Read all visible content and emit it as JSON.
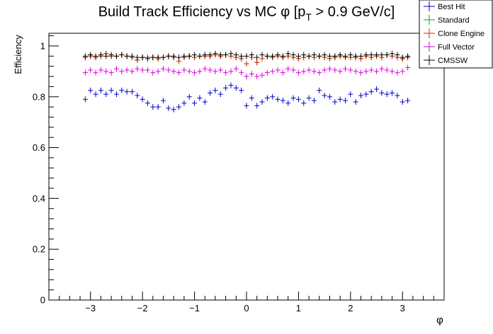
{
  "chart_data": {
    "type": "scatter",
    "title": "Build Track Efficiency vs MC φ [p",
    "title_sub": "T",
    "title_tail": " > 0.9 GeV/c]",
    "xlabel": "φ",
    "ylabel": "Efficiency",
    "xlim": [
      -3.8,
      3.8
    ],
    "ylim": [
      0,
      1.05
    ],
    "legend_position": "top-right",
    "grid": false,
    "x_ticks": [
      -3,
      -2,
      -1,
      0,
      1,
      2,
      3
    ],
    "x_tick_labels": [
      "−3",
      "−2",
      "−1",
      "0",
      "1",
      "2",
      "3"
    ],
    "y_ticks": [
      0,
      0.2,
      0.4,
      0.6,
      0.8,
      1
    ],
    "y_tick_labels": [
      "0",
      "0.2",
      "0.4",
      "0.6",
      "0.8",
      "1"
    ],
    "x": [
      -3.1,
      -3.0,
      -2.9,
      -2.8,
      -2.7,
      -2.6,
      -2.5,
      -2.4,
      -2.3,
      -2.2,
      -2.1,
      -2.0,
      -1.9,
      -1.8,
      -1.7,
      -1.6,
      -1.5,
      -1.4,
      -1.3,
      -1.2,
      -1.1,
      -1.0,
      -0.9,
      -0.8,
      -0.7,
      -0.6,
      -0.5,
      -0.4,
      -0.3,
      -0.2,
      -0.1,
      0.0,
      0.1,
      0.2,
      0.3,
      0.4,
      0.5,
      0.6,
      0.7,
      0.8,
      0.9,
      1.0,
      1.1,
      1.2,
      1.3,
      1.4,
      1.5,
      1.6,
      1.7,
      1.8,
      1.9,
      2.0,
      2.1,
      2.2,
      2.3,
      2.4,
      2.5,
      2.6,
      2.7,
      2.8,
      2.9,
      3.0,
      3.1
    ],
    "series": [
      {
        "name": "Best Hit",
        "color": "#0000cc",
        "values": [
          0.79,
          0.825,
          0.81,
          0.825,
          0.81,
          0.825,
          0.81,
          0.825,
          0.82,
          0.82,
          0.805,
          0.79,
          0.775,
          0.76,
          0.76,
          0.785,
          0.755,
          0.75,
          0.76,
          0.775,
          0.8,
          0.775,
          0.795,
          0.78,
          0.815,
          0.825,
          0.81,
          0.835,
          0.845,
          0.835,
          0.825,
          0.765,
          0.795,
          0.765,
          0.78,
          0.795,
          0.8,
          0.79,
          0.785,
          0.775,
          0.795,
          0.79,
          0.775,
          0.795,
          0.785,
          0.825,
          0.805,
          0.8,
          0.78,
          0.79,
          0.785,
          0.81,
          0.78,
          0.805,
          0.81,
          0.82,
          0.83,
          0.815,
          0.81,
          0.815,
          0.805,
          0.78,
          0.785
        ]
      },
      {
        "name": "Standard",
        "color": "#00aa00",
        "values": [
          0.955,
          0.96,
          0.955,
          0.96,
          0.97,
          0.96,
          0.96,
          0.965,
          0.96,
          0.955,
          0.945,
          0.955,
          0.955,
          0.955,
          0.95,
          0.955,
          0.96,
          0.955,
          0.94,
          0.955,
          0.96,
          0.955,
          0.96,
          0.96,
          0.96,
          0.965,
          0.96,
          0.965,
          0.96,
          0.955,
          0.95,
          0.93,
          0.955,
          0.935,
          0.95,
          0.96,
          0.955,
          0.96,
          0.955,
          0.96,
          0.955,
          0.95,
          0.955,
          0.96,
          0.955,
          0.96,
          0.955,
          0.95,
          0.955,
          0.96,
          0.955,
          0.955,
          0.955,
          0.95,
          0.96,
          0.955,
          0.96,
          0.955,
          0.965,
          0.96,
          0.955,
          0.95,
          0.955
        ]
      },
      {
        "name": "Clone Engine",
        "color": "#ee2200",
        "values": [
          0.955,
          0.96,
          0.955,
          0.96,
          0.97,
          0.96,
          0.96,
          0.965,
          0.96,
          0.955,
          0.945,
          0.955,
          0.955,
          0.955,
          0.95,
          0.955,
          0.96,
          0.955,
          0.94,
          0.955,
          0.96,
          0.955,
          0.96,
          0.96,
          0.96,
          0.965,
          0.96,
          0.965,
          0.96,
          0.955,
          0.95,
          0.93,
          0.955,
          0.935,
          0.95,
          0.96,
          0.955,
          0.96,
          0.955,
          0.96,
          0.955,
          0.95,
          0.955,
          0.96,
          0.955,
          0.96,
          0.955,
          0.95,
          0.955,
          0.96,
          0.955,
          0.955,
          0.955,
          0.95,
          0.96,
          0.955,
          0.96,
          0.955,
          0.965,
          0.96,
          0.955,
          0.95,
          0.955
        ]
      },
      {
        "name": "Full Vector",
        "color": "#dd00dd",
        "values": [
          0.895,
          0.905,
          0.895,
          0.905,
          0.9,
          0.895,
          0.91,
          0.9,
          0.905,
          0.9,
          0.91,
          0.905,
          0.905,
          0.895,
          0.9,
          0.91,
          0.905,
          0.9,
          0.895,
          0.905,
          0.9,
          0.895,
          0.9,
          0.91,
          0.905,
          0.9,
          0.905,
          0.895,
          0.9,
          0.91,
          0.895,
          0.88,
          0.89,
          0.88,
          0.885,
          0.895,
          0.9,
          0.905,
          0.895,
          0.91,
          0.905,
          0.895,
          0.9,
          0.905,
          0.9,
          0.895,
          0.905,
          0.91,
          0.905,
          0.9,
          0.91,
          0.905,
          0.9,
          0.895,
          0.9,
          0.905,
          0.9,
          0.91,
          0.905,
          0.9,
          0.895,
          0.9,
          0.915
        ]
      },
      {
        "name": "CMSSW",
        "color": "#000000",
        "values": [
          0.96,
          0.965,
          0.96,
          0.965,
          0.96,
          0.965,
          0.96,
          0.965,
          0.96,
          0.96,
          0.955,
          0.955,
          0.95,
          0.955,
          0.955,
          0.955,
          0.96,
          0.96,
          0.955,
          0.96,
          0.96,
          0.965,
          0.96,
          0.965,
          0.965,
          0.97,
          0.965,
          0.965,
          0.97,
          0.965,
          0.96,
          0.96,
          0.965,
          0.955,
          0.965,
          0.96,
          0.96,
          0.965,
          0.96,
          0.97,
          0.965,
          0.96,
          0.965,
          0.96,
          0.965,
          0.96,
          0.965,
          0.96,
          0.96,
          0.965,
          0.96,
          0.965,
          0.96,
          0.96,
          0.965,
          0.965,
          0.965,
          0.965,
          0.965,
          0.97,
          0.965,
          0.955,
          0.96
        ]
      }
    ]
  }
}
